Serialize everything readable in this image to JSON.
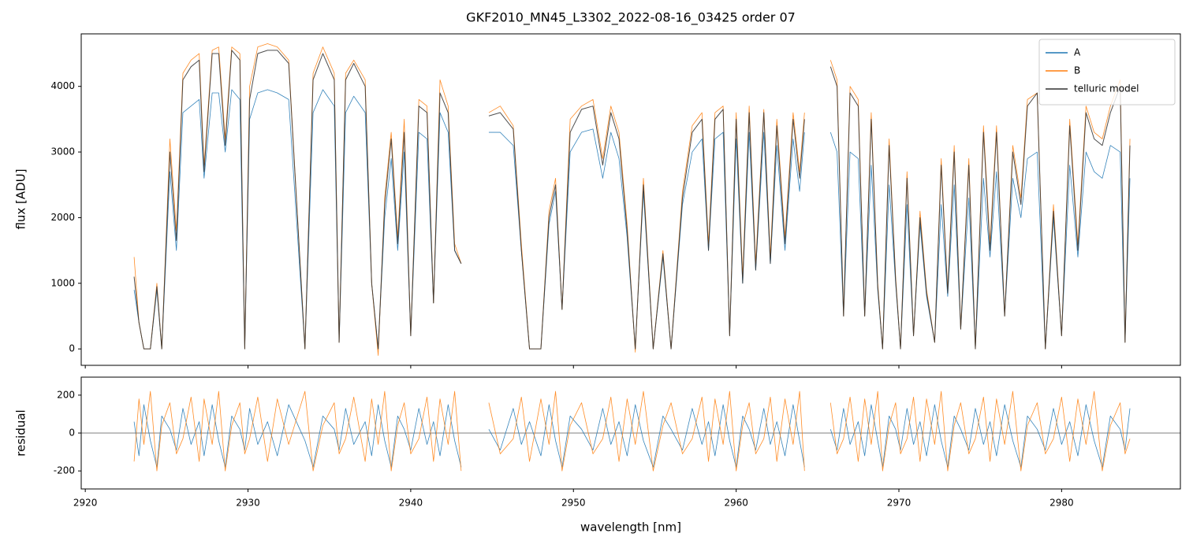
{
  "chart_data": [
    {
      "type": "line",
      "title": "GKF2010_MN45_L3302_2022-08-16_03425  order 07",
      "ylabel": "flux [ADU]",
      "x": [
        2923.0,
        2923.3,
        2923.6,
        2924.0,
        2924.4,
        2924.7,
        2925.2,
        2925.6,
        2926.0,
        2926.5,
        2927.0,
        2927.3,
        2927.8,
        2928.2,
        2928.6,
        2929.0,
        2929.5,
        2929.8,
        2930.1,
        2930.6,
        2931.2,
        2931.8,
        2932.5,
        2933.5,
        2934.0,
        2934.6,
        2935.3,
        2935.6,
        2936.0,
        2936.5,
        2937.2,
        2937.6,
        2938.0,
        2938.4,
        2938.8,
        2939.2,
        2939.6,
        2940.0,
        2940.5,
        2941.0,
        2941.4,
        2941.8,
        2942.3,
        2942.7,
        2943.1,
        2944.0,
        2944.8,
        2945.5,
        2946.3,
        2946.8,
        2947.3,
        2948.0,
        2948.5,
        2948.9,
        2949.3,
        2949.8,
        2950.5,
        2951.2,
        2951.8,
        2952.3,
        2952.8,
        2953.3,
        2953.8,
        2954.3,
        2954.9,
        2955.5,
        2956.0,
        2956.7,
        2957.3,
        2957.9,
        2958.3,
        2958.7,
        2959.2,
        2959.6,
        2960.0,
        2960.4,
        2960.8,
        2961.2,
        2961.7,
        2962.1,
        2962.5,
        2963.0,
        2963.5,
        2963.9,
        2964.2,
        2965.0,
        2965.8,
        2966.2,
        2966.6,
        2967.0,
        2967.5,
        2967.9,
        2968.3,
        2968.7,
        2969.0,
        2969.4,
        2969.8,
        2970.1,
        2970.5,
        2970.9,
        2971.3,
        2971.7,
        2972.2,
        2972.6,
        2973.0,
        2973.4,
        2973.8,
        2974.3,
        2974.7,
        2975.2,
        2975.6,
        2976.0,
        2976.5,
        2977.0,
        2977.5,
        2977.9,
        2978.5,
        2979.0,
        2979.5,
        2980.0,
        2980.5,
        2981.0,
        2981.5,
        2982.0,
        2982.5,
        2983.0,
        2983.6,
        2983.9,
        2984.2
      ],
      "series": [
        {
          "name": "A",
          "color": "#1f77b4",
          "values": [
            900,
            400,
            0,
            0,
            900,
            0,
            2700,
            1500,
            3600,
            3700,
            3800,
            2600,
            3900,
            3900,
            3000,
            3950,
            3800,
            0,
            3500,
            3900,
            3950,
            3900,
            3800,
            0,
            3600,
            3950,
            3700,
            100,
            3600,
            3850,
            3600,
            1000,
            0,
            2000,
            2900,
            1500,
            3000,
            200,
            3300,
            3200,
            700,
            3600,
            3300,
            1500,
            1300,
            null,
            3300,
            3300,
            3100,
            1500,
            0,
            0,
            1900,
            2400,
            600,
            3000,
            3300,
            3350,
            2600,
            3300,
            2900,
            1700,
            0,
            2400,
            0,
            1400,
            0,
            2200,
            3000,
            3200,
            1500,
            3200,
            3300,
            200,
            3200,
            1000,
            3300,
            1200,
            3300,
            1300,
            3100,
            1500,
            3200,
            2400,
            3300,
            null,
            3300,
            3000,
            500,
            3000,
            2900,
            500,
            2800,
            900,
            0,
            2500,
            1000,
            0,
            2200,
            200,
            1900,
            800,
            100,
            2200,
            800,
            2500,
            300,
            2300,
            0,
            2600,
            1400,
            2700,
            500,
            2600,
            2000,
            2900,
            3000,
            0,
            2000,
            200,
            2800,
            1400,
            3000,
            2700,
            2600,
            3100,
            3000,
            100,
            2600
          ]
        },
        {
          "name": "B",
          "color": "#ff7f0e",
          "values": [
            1400,
            400,
            0,
            0,
            1000,
            0,
            3200,
            1800,
            4200,
            4400,
            4500,
            2800,
            4550,
            4600,
            3200,
            4600,
            4500,
            0,
            4000,
            4600,
            4650,
            4600,
            4400,
            0,
            4200,
            4600,
            4200,
            100,
            4200,
            4400,
            4100,
            1000,
            -100,
            2300,
            3300,
            1700,
            3500,
            200,
            3800,
            3700,
            700,
            4100,
            3700,
            1600,
            1300,
            null,
            3600,
            3700,
            3400,
            1600,
            0,
            0,
            2100,
            2600,
            600,
            3500,
            3700,
            3800,
            2900,
            3700,
            3300,
            1900,
            -50,
            2600,
            0,
            1500,
            0,
            2400,
            3400,
            3600,
            1600,
            3600,
            3700,
            200,
            3600,
            1100,
            3700,
            1300,
            3650,
            1400,
            3500,
            1700,
            3600,
            2700,
            3600,
            null,
            4400,
            4100,
            500,
            4000,
            3800,
            500,
            3600,
            1000,
            0,
            3200,
            1100,
            0,
            2700,
            200,
            2100,
            900,
            100,
            2900,
            900,
            3100,
            300,
            2900,
            0,
            3400,
            1600,
            3400,
            500,
            3100,
            2300,
            3800,
            3900,
            0,
            2200,
            200,
            3500,
            1600,
            3700,
            3300,
            3200,
            3700,
            4100,
            100,
            3200
          ]
        },
        {
          "name": "telluric model",
          "color": "#303030",
          "values": [
            1100,
            400,
            0,
            0,
            950,
            0,
            3000,
            1650,
            4100,
            4300,
            4400,
            2700,
            4500,
            4500,
            3100,
            4550,
            4400,
            0,
            3800,
            4500,
            4550,
            4550,
            4350,
            0,
            4100,
            4500,
            4100,
            100,
            4100,
            4350,
            4000,
            1000,
            0,
            2200,
            3200,
            1600,
            3300,
            200,
            3700,
            3600,
            700,
            3900,
            3600,
            1500,
            1300,
            null,
            3550,
            3600,
            3350,
            1500,
            0,
            0,
            2000,
            2500,
            600,
            3300,
            3650,
            3700,
            2800,
            3600,
            3200,
            1800,
            0,
            2500,
            0,
            1450,
            0,
            2300,
            3300,
            3500,
            1500,
            3500,
            3650,
            200,
            3500,
            1000,
            3600,
            1200,
            3600,
            1300,
            3400,
            1600,
            3500,
            2600,
            3500,
            null,
            4300,
            4000,
            500,
            3900,
            3700,
            500,
            3500,
            950,
            0,
            3100,
            1050,
            0,
            2600,
            200,
            2000,
            850,
            100,
            2800,
            850,
            3000,
            300,
            2800,
            0,
            3300,
            1500,
            3300,
            500,
            3000,
            2200,
            3700,
            3900,
            0,
            2100,
            200,
            3400,
            1500,
            3600,
            3200,
            3100,
            3600,
            4000,
            100,
            3100
          ]
        }
      ],
      "xlim": [
        2919.75,
        2987.3
      ],
      "ylim": [
        -250,
        4800
      ],
      "xticks": [
        2920,
        2930,
        2940,
        2950,
        2960,
        2970,
        2980
      ],
      "xticklabels": false,
      "yticks": [
        0,
        1000,
        2000,
        3000,
        4000
      ],
      "legend": "upper right"
    },
    {
      "type": "line",
      "xlabel": "wavelength [nm]",
      "ylabel": "residual",
      "x": [
        2923.0,
        2923.3,
        2923.6,
        2924.0,
        2924.4,
        2924.7,
        2925.2,
        2925.6,
        2926.0,
        2926.5,
        2927.0,
        2927.3,
        2927.8,
        2928.2,
        2928.6,
        2929.0,
        2929.5,
        2929.8,
        2930.1,
        2930.6,
        2931.2,
        2931.8,
        2932.5,
        2933.5,
        2934.0,
        2934.6,
        2935.3,
        2935.6,
        2936.0,
        2936.5,
        2937.2,
        2937.6,
        2938.0,
        2938.4,
        2938.8,
        2939.2,
        2939.6,
        2940.0,
        2940.5,
        2941.0,
        2941.4,
        2941.8,
        2942.3,
        2942.7,
        2943.1,
        2944.0,
        2944.8,
        2945.5,
        2946.3,
        2946.8,
        2947.3,
        2948.0,
        2948.5,
        2948.9,
        2949.3,
        2949.8,
        2950.5,
        2951.2,
        2951.8,
        2952.3,
        2952.8,
        2953.3,
        2953.8,
        2954.3,
        2954.9,
        2955.5,
        2956.0,
        2956.7,
        2957.3,
        2957.9,
        2958.3,
        2958.7,
        2959.2,
        2959.6,
        2960.0,
        2960.4,
        2960.8,
        2961.2,
        2961.7,
        2962.1,
        2962.5,
        2963.0,
        2963.5,
        2963.9,
        2964.2,
        2965.0,
        2965.8,
        2966.2,
        2966.6,
        2967.0,
        2967.5,
        2967.9,
        2968.3,
        2968.7,
        2969.0,
        2969.4,
        2969.8,
        2970.1,
        2970.5,
        2970.9,
        2971.3,
        2971.7,
        2972.2,
        2972.6,
        2973.0,
        2973.4,
        2973.8,
        2974.3,
        2974.7,
        2975.2,
        2975.6,
        2976.0,
        2976.5,
        2977.0,
        2977.5,
        2977.9,
        2978.5,
        2979.0,
        2979.5,
        2980.0,
        2980.5,
        2981.0,
        2981.5,
        2982.0,
        2982.5,
        2983.0,
        2983.6,
        2983.9,
        2984.2
      ],
      "series": [
        {
          "color": "#1f77b4",
          "values": [
            60,
            -120,
            150,
            -40,
            -180,
            90,
            20,
            -90,
            130,
            -60,
            60,
            -120,
            150,
            -40,
            -180,
            90,
            20,
            -90,
            130,
            -60,
            60,
            -120,
            150,
            -40,
            -180,
            90,
            20,
            -90,
            130,
            -60,
            60,
            -120,
            150,
            -40,
            -180,
            90,
            20,
            -90,
            130,
            -60,
            60,
            -120,
            150,
            -40,
            -180,
            null,
            20,
            -90,
            130,
            -60,
            60,
            -120,
            150,
            -40,
            -180,
            90,
            20,
            -90,
            130,
            -60,
            60,
            -120,
            150,
            -40,
            -180,
            90,
            20,
            -90,
            130,
            -60,
            60,
            -120,
            150,
            -40,
            -180,
            90,
            20,
            -90,
            130,
            -60,
            60,
            -120,
            150,
            -40,
            -180,
            null,
            20,
            -90,
            130,
            -60,
            60,
            -120,
            150,
            -40,
            -180,
            90,
            20,
            -90,
            130,
            -60,
            60,
            -120,
            150,
            -40,
            -180,
            90,
            20,
            -90,
            130,
            -60,
            60,
            -120,
            150,
            -40,
            -180,
            90,
            20,
            -90,
            130,
            -60,
            60,
            -120,
            150,
            -40,
            -180,
            90,
            20,
            -90,
            130
          ]
        },
        {
          "color": "#ff7f0e",
          "values": [
            -150,
            180,
            -60,
            220,
            -200,
            40,
            160,
            -110,
            -30,
            190,
            -150,
            180,
            -60,
            220,
            -200,
            40,
            160,
            -110,
            -30,
            190,
            -150,
            180,
            -60,
            220,
            -200,
            40,
            160,
            -110,
            -30,
            190,
            -150,
            180,
            -60,
            220,
            -200,
            40,
            160,
            -110,
            -30,
            190,
            -150,
            180,
            -60,
            220,
            -200,
            null,
            160,
            -110,
            -30,
            190,
            -150,
            180,
            -60,
            220,
            -200,
            40,
            160,
            -110,
            -30,
            190,
            -150,
            180,
            -60,
            220,
            -200,
            40,
            160,
            -110,
            -30,
            190,
            -150,
            180,
            -60,
            220,
            -200,
            40,
            160,
            -110,
            -30,
            190,
            -150,
            180,
            -60,
            220,
            -200,
            null,
            160,
            -110,
            -30,
            190,
            -150,
            180,
            -60,
            220,
            -200,
            40,
            160,
            -110,
            -30,
            190,
            -150,
            180,
            -60,
            220,
            -200,
            40,
            160,
            -110,
            -30,
            190,
            -150,
            180,
            -60,
            220,
            -200,
            40,
            160,
            -110,
            -30,
            190,
            -150,
            180,
            -60,
            220,
            -200,
            40,
            160,
            -110,
            -30
          ]
        }
      ],
      "xlim": [
        2919.75,
        2987.3
      ],
      "ylim": [
        -295,
        295
      ],
      "xticks": [
        2920,
        2930,
        2940,
        2950,
        2960,
        2970,
        2980
      ],
      "yticks": [
        -200,
        0,
        200
      ],
      "zero_line": true
    }
  ]
}
